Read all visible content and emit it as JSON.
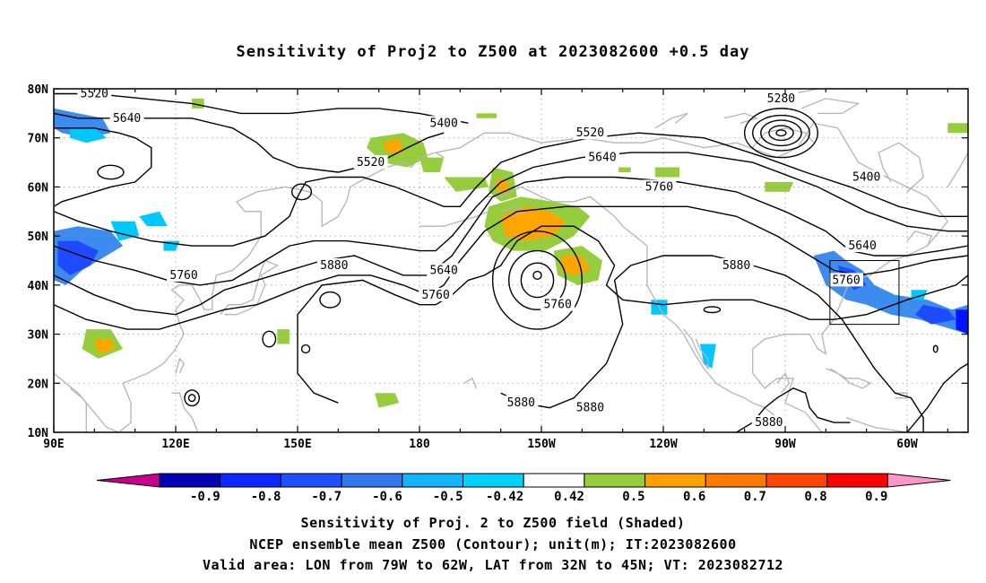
{
  "title": "Sensitivity of Proj2 to Z500 at 2023082600 +0.5 day",
  "map": {
    "lat_labels": [
      "80N",
      "70N",
      "60N",
      "50N",
      "40N",
      "30N",
      "20N",
      "10N"
    ],
    "lon_labels": [
      "90E",
      "120E",
      "150E",
      "180",
      "150W",
      "120W",
      "90W",
      "60W"
    ],
    "contour_labels": [
      {
        "text": "5520",
        "lon": 100,
        "lat": 79
      },
      {
        "text": "5640",
        "lon": 108,
        "lat": 74
      },
      {
        "text": "5520",
        "lon": 168,
        "lat": 65
      },
      {
        "text": "5400",
        "lon": 186,
        "lat": 73
      },
      {
        "text": "5760",
        "lon": 122,
        "lat": 42
      },
      {
        "text": "5880",
        "lon": 159,
        "lat": 44
      },
      {
        "text": "5640",
        "lon": 186,
        "lat": 43
      },
      {
        "text": "5760",
        "lon": 184,
        "lat": 38
      },
      {
        "text": "5520",
        "lon": 222,
        "lat": 71
      },
      {
        "text": "5640",
        "lon": 225,
        "lat": 66
      },
      {
        "text": "5760",
        "lon": 239,
        "lat": 60
      },
      {
        "text": "5760",
        "lon": 214,
        "lat": 36
      },
      {
        "text": "5880",
        "lon": 205,
        "lat": 16
      },
      {
        "text": "5880",
        "lon": 222,
        "lat": 15
      },
      {
        "text": "5880",
        "lon": 258,
        "lat": 44
      },
      {
        "text": "5280",
        "lon": 269,
        "lat": 78
      },
      {
        "text": "5400",
        "lon": 290,
        "lat": 62
      },
      {
        "text": "5640",
        "lon": 289,
        "lat": 48
      },
      {
        "text": "5760",
        "lon": 285,
        "lat": 41
      },
      {
        "text": "5880",
        "lon": 266,
        "lat": 12
      }
    ],
    "valid_area": {
      "lon_min": -79,
      "lon_max": -62,
      "lat_min": 32,
      "lat_max": 45
    },
    "colors": {
      "neg_09": "#8b008b",
      "neg_08": "#0000c8",
      "neg_07": "#0014ff",
      "neg_06": "#1e4bff",
      "neg_05": "#3c8cf0",
      "neg_042": "#00c8ff",
      "neutral": "#ffffff",
      "pos_042": "#96cd3c",
      "pos_05": "#ffa500",
      "pos_06": "#ff7d00",
      "pos_07": "#ff4b00",
      "pos_08": "#ff0000",
      "pos_09": "#ff96c8",
      "coast": "#b4b4b4",
      "contour": "#000000"
    }
  },
  "colorbar": {
    "labels": [
      "-0.9",
      "-0.8",
      "-0.7",
      "-0.6",
      "-0.5",
      "-0.42",
      "0.42",
      "0.5",
      "0.6",
      "0.7",
      "0.8",
      "0.9"
    ],
    "colors": [
      "#0000b4",
      "#0a28ff",
      "#1e50ff",
      "#3278f0",
      "#14b4ff",
      "#00d2ff",
      "#ffffff",
      "#96cd3c",
      "#ffa000",
      "#ff7800",
      "#ff4600",
      "#ff0000"
    ],
    "low_end": "#c8008c",
    "high_end": "#ff96c8"
  },
  "captions": {
    "line1": "Sensitivity of Proj. 2 to Z500 field (Shaded)",
    "line2": "NCEP ensemble mean Z500 (Contour); unit(m); IT:2023082600",
    "line3": "Valid area: LON from 79W to 62W, LAT from 32N to 45N; VT: 2023082712"
  }
}
